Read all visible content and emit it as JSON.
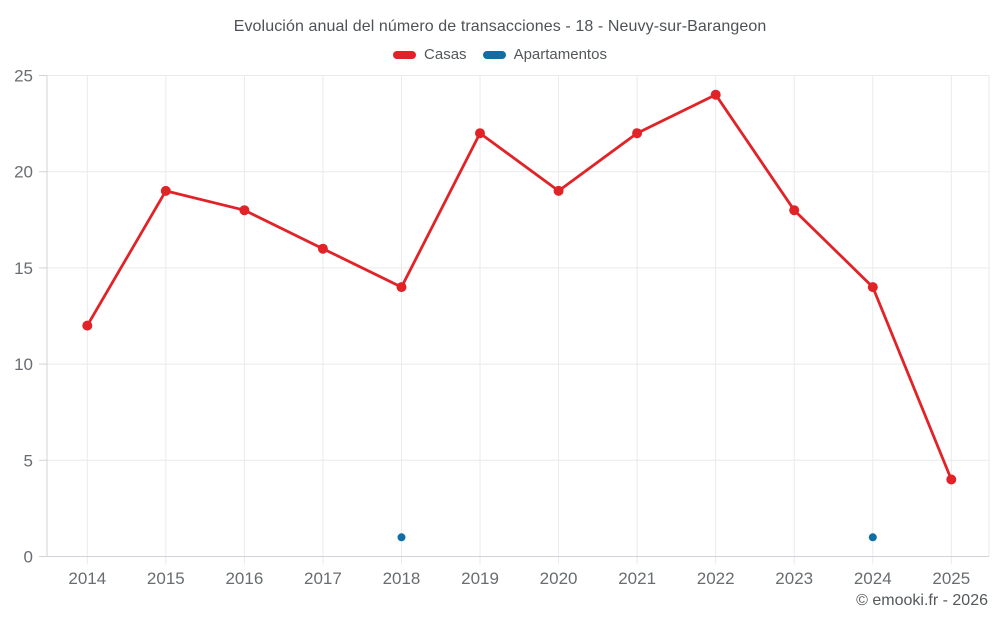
{
  "header": {
    "title": "Evolución anual del número de transacciones - 18 - Neuvy-sur-Barangeon"
  },
  "legend": {
    "items": [
      {
        "label": "Casas",
        "color": "#e12328"
      },
      {
        "label": "Apartamentos",
        "color": "#0f6ea5"
      }
    ]
  },
  "footer": {
    "credit": "© emooki.fr - 2026"
  },
  "chart_data": {
    "type": "line",
    "title": "Evolución anual del número de transacciones - 18 - Neuvy-sur-Barangeon",
    "categories": [
      "2014",
      "2015",
      "2016",
      "2017",
      "2018",
      "2019",
      "2020",
      "2021",
      "2022",
      "2023",
      "2024",
      "2025"
    ],
    "series": [
      {
        "name": "Casas",
        "color": "#e12328",
        "values": [
          12,
          19,
          18,
          16,
          14,
          22,
          19,
          22,
          24,
          18,
          14,
          4
        ]
      },
      {
        "name": "Apartamentos",
        "color": "#0f6ea5",
        "values": [
          null,
          null,
          null,
          null,
          1,
          null,
          null,
          null,
          null,
          null,
          1,
          null
        ]
      }
    ],
    "xlabel": "",
    "ylabel": "",
    "ylim": [
      0,
      25
    ],
    "yticks": [
      0,
      5,
      10,
      15,
      20,
      25
    ],
    "grid": true,
    "legend_position": "top"
  }
}
